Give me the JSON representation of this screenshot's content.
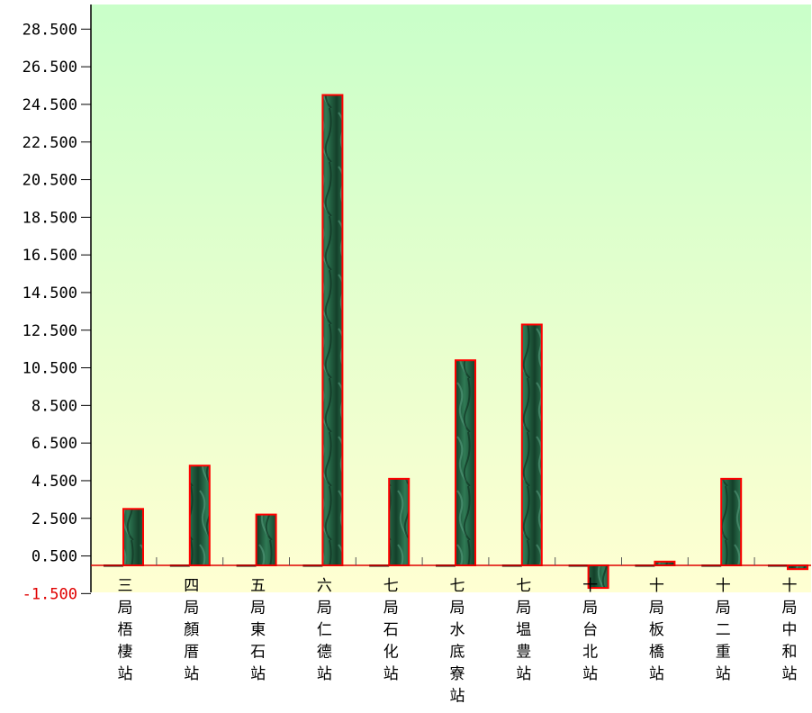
{
  "chart_data": {
    "type": "bar",
    "title": "",
    "xlabel": "",
    "ylabel": "",
    "categories": [
      "三局梧棲站",
      "四局顏厝站",
      "五局東石站",
      "六局仁德站",
      "七局石化站",
      "七局水底寮站",
      "七局塭豊站",
      "十局台北站",
      "十局板橋站",
      "十局二重站",
      "十局中和站"
    ],
    "series": [
      {
        "values": [
          0,
          0,
          0,
          0,
          0,
          0,
          0,
          0,
          0,
          0,
          0
        ]
      },
      {
        "values": [
          3.0,
          5.3,
          2.7,
          25.0,
          4.6,
          10.9,
          12.8,
          -1.2,
          0.2,
          4.6,
          -0.2
        ]
      }
    ],
    "yticks": [
      "28.500",
      "26.500",
      "24.500",
      "22.500",
      "20.500",
      "18.500",
      "16.500",
      "14.500",
      "12.500",
      "10.500",
      "8.500",
      "6.500",
      "4.500",
      "2.500",
      "0.500",
      "-1.500"
    ],
    "ylim": [
      -1.5,
      29.6
    ],
    "grid": false,
    "legend": "none",
    "colors": {
      "bar_fill": "#1e5a3a",
      "bar_stroke": "#ff0000",
      "zero_line": "#e00000",
      "background_top": "#c9ffc9",
      "background_bottom": "#ffffd2",
      "negative_tick": "#e00000"
    }
  }
}
